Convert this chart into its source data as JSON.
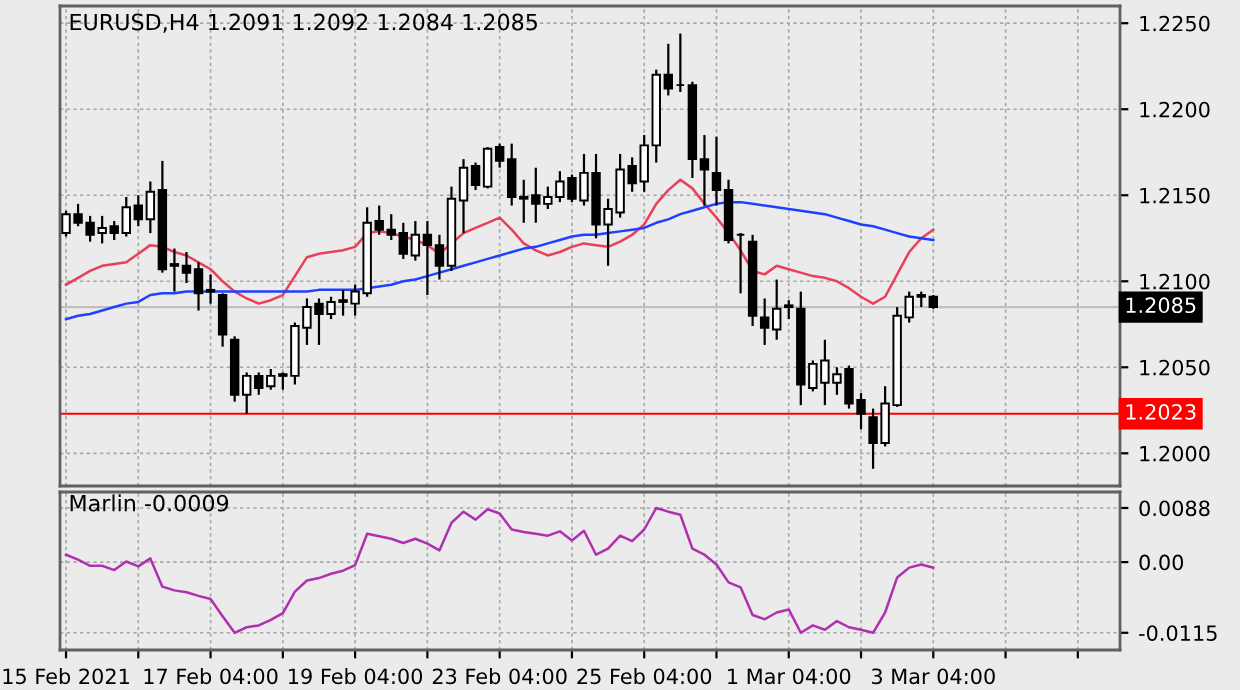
{
  "chart_data": [
    {
      "type": "candlestick",
      "title": "EURUSD,H4 1.2091 1.2092 1.2084 1.2085",
      "categories": [
        null,
        null,
        null,
        null,
        null,
        null,
        null,
        null,
        null,
        null,
        null,
        null,
        null,
        null,
        null,
        null,
        null,
        null,
        null,
        null,
        null,
        null,
        null,
        null,
        null,
        null,
        null,
        null,
        null,
        null,
        null,
        null,
        null,
        null,
        null,
        null,
        null,
        null,
        null,
        null,
        null,
        null,
        null,
        null,
        null,
        null,
        null,
        null,
        null,
        null,
        null,
        null,
        null,
        null,
        null,
        null,
        null,
        null,
        null,
        null,
        null,
        null,
        null,
        null,
        null,
        null,
        null,
        null,
        null,
        null,
        null,
        null,
        null,
        null,
        null,
        null,
        null,
        null,
        null,
        null,
        null,
        null,
        null,
        null,
        null,
        null,
        null,
        null
      ],
      "ohlc": [
        [
          1.2128,
          1.2141,
          1.2126,
          1.2139
        ],
        [
          1.2139,
          1.2145,
          1.2132,
          1.2134
        ],
        [
          1.2134,
          1.2138,
          1.2123,
          1.2127
        ],
        [
          1.2128,
          1.2138,
          1.2122,
          1.2131
        ],
        [
          1.2132,
          1.2135,
          1.2124,
          1.2128
        ],
        [
          1.2128,
          1.2149,
          1.2126,
          1.2143
        ],
        [
          1.2144,
          1.215,
          1.2132,
          1.2136
        ],
        [
          1.2136,
          1.2158,
          1.2128,
          1.2152
        ],
        [
          1.2153,
          1.217,
          1.2105,
          1.2107
        ],
        [
          1.211,
          1.2119,
          1.2094,
          1.2109
        ],
        [
          1.2109,
          1.2117,
          1.2099,
          1.2105
        ],
        [
          1.2107,
          1.2111,
          1.2083,
          1.2093
        ],
        [
          1.2095,
          1.2104,
          1.2087,
          1.2094
        ],
        [
          1.2092,
          1.2093,
          1.2062,
          1.2069
        ],
        [
          1.2066,
          1.2068,
          1.203,
          1.2034
        ],
        [
          1.2034,
          1.2047,
          1.2023,
          1.2045
        ],
        [
          1.2045,
          1.2047,
          1.2034,
          1.2038
        ],
        [
          1.2039,
          1.2049,
          1.2037,
          1.2045
        ],
        [
          1.2045,
          1.2047,
          1.2037,
          1.2046
        ],
        [
          1.2045,
          1.2076,
          1.204,
          1.2074
        ],
        [
          1.2073,
          1.209,
          1.2063,
          1.2085
        ],
        [
          1.2087,
          1.209,
          1.2063,
          1.2081
        ],
        [
          1.2081,
          1.2091,
          1.2078,
          1.2088
        ],
        [
          1.2088,
          1.2095,
          1.208,
          1.2089
        ],
        [
          1.2087,
          1.2098,
          1.208,
          1.2094
        ],
        [
          1.2093,
          1.2143,
          1.2091,
          1.2134
        ],
        [
          1.2135,
          1.2144,
          1.2127,
          1.213
        ],
        [
          1.213,
          1.2139,
          1.2124,
          1.2127
        ],
        [
          1.2128,
          1.2134,
          1.2113,
          1.2116
        ],
        [
          1.2115,
          1.2135,
          1.2112,
          1.2127
        ],
        [
          1.2127,
          1.2135,
          1.2092,
          1.2121
        ],
        [
          1.2121,
          1.2127,
          1.2101,
          1.2109
        ],
        [
          1.2109,
          1.2155,
          1.2106,
          1.2148
        ],
        [
          1.2147,
          1.2171,
          1.2128,
          1.2166
        ],
        [
          1.2167,
          1.2169,
          1.2153,
          1.2156
        ],
        [
          1.2155,
          1.2178,
          1.2154,
          1.2177
        ],
        [
          1.2178,
          1.218,
          1.2166,
          1.217
        ],
        [
          1.2171,
          1.218,
          1.2144,
          1.2149
        ],
        [
          1.2149,
          1.2159,
          1.2134,
          1.2148
        ],
        [
          1.215,
          1.2166,
          1.2134,
          1.2145
        ],
        [
          1.2145,
          1.2155,
          1.2142,
          1.2149
        ],
        [
          1.2149,
          1.2164,
          1.2146,
          1.2158
        ],
        [
          1.216,
          1.2162,
          1.2146,
          1.2148
        ],
        [
          1.2147,
          1.2174,
          1.2144,
          1.2163
        ],
        [
          1.2163,
          1.2174,
          1.2125,
          1.2133
        ],
        [
          1.2133,
          1.2148,
          1.2109,
          1.2142
        ],
        [
          1.214,
          1.2174,
          1.2137,
          1.2165
        ],
        [
          1.2167,
          1.2172,
          1.2152,
          1.2157
        ],
        [
          1.2158,
          1.2185,
          1.2152,
          1.2179
        ],
        [
          1.2179,
          1.2223,
          1.2169,
          1.222
        ],
        [
          1.222,
          1.2238,
          1.2208,
          1.2212
        ],
        [
          1.2214,
          1.2244,
          1.221,
          1.2214
        ],
        [
          1.2214,
          1.2216,
          1.216,
          1.2171
        ],
        [
          1.2171,
          1.2185,
          1.2144,
          1.2165
        ],
        [
          1.2163,
          1.2184,
          1.2144,
          1.2153
        ],
        [
          1.2153,
          1.2159,
          1.2122,
          1.2124
        ],
        [
          1.2127,
          1.2128,
          1.2093,
          1.2127
        ],
        [
          1.2123,
          1.2127,
          1.2074,
          1.208
        ],
        [
          1.2079,
          1.209,
          1.2063,
          1.2073
        ],
        [
          1.2072,
          1.2101,
          1.2066,
          1.2084
        ],
        [
          1.2085,
          1.2089,
          1.2078,
          1.2086
        ],
        [
          1.2084,
          1.2094,
          1.2028,
          1.204
        ],
        [
          1.2038,
          1.2054,
          1.2036,
          1.2052
        ],
        [
          1.2041,
          1.2066,
          1.2028,
          1.2054
        ],
        [
          1.2041,
          1.205,
          1.2034,
          1.2046
        ],
        [
          1.2049,
          1.2051,
          1.2026,
          1.2029
        ],
        [
          1.2031,
          1.2035,
          1.2014,
          1.2023
        ],
        [
          1.2021,
          1.2026,
          1.1991,
          1.2006
        ],
        [
          1.2006,
          1.2039,
          1.2004,
          1.2029
        ],
        [
          1.2028,
          1.2085,
          1.2027,
          1.208
        ],
        [
          1.2079,
          1.2094,
          1.2076,
          1.2091
        ],
        [
          1.2091,
          1.2094,
          1.2085,
          1.2092
        ],
        [
          1.2091,
          1.2092,
          1.2084,
          1.2085
        ],
        null,
        null,
        null,
        null,
        null,
        null,
        null,
        null,
        null,
        null,
        null,
        null,
        null,
        null,
        null
      ],
      "series": [
        {
          "type": "line",
          "color": "#e8405a",
          "values": [
            1.2098,
            1.2102,
            1.2106,
            1.2109,
            1.211,
            1.2111,
            1.2116,
            1.2121,
            1.212,
            1.2117,
            1.2115,
            1.2111,
            1.2107,
            1.21,
            1.2094,
            1.209,
            1.2087,
            1.2089,
            1.2092,
            1.2103,
            1.2114,
            1.2116,
            1.2117,
            1.2118,
            1.212,
            1.2128,
            1.2129,
            1.2128,
            1.2126,
            1.2124,
            1.2121,
            1.2116,
            1.2122,
            1.2128,
            1.2131,
            1.2134,
            1.2137,
            1.213,
            1.2122,
            1.2118,
            1.2115,
            1.2117,
            1.212,
            1.2122,
            1.2121,
            1.212,
            1.2123,
            1.2127,
            1.2133,
            1.2145,
            1.2153,
            1.2159,
            1.2154,
            1.2145,
            1.2137,
            1.2128,
            1.2118,
            1.2106,
            1.2104,
            1.2109,
            1.2107,
            1.2105,
            1.2103,
            1.2102,
            1.21,
            1.2096,
            1.2091,
            1.2087,
            1.2091,
            1.2104,
            1.2117,
            1.2125,
            1.213,
            null,
            null,
            null,
            null,
            null,
            null,
            null,
            null,
            null,
            null,
            null,
            null,
            null,
            null,
            null
          ]
        },
        {
          "type": "line",
          "color": "#2040ff",
          "values": [
            1.2078,
            1.208,
            1.2081,
            1.2083,
            1.2085,
            1.2087,
            1.2088,
            1.2092,
            1.2093,
            1.2093,
            1.2094,
            1.2094,
            1.2094,
            1.2094,
            1.2094,
            1.2094,
            1.2094,
            1.2094,
            1.2094,
            1.2094,
            1.2094,
            1.2095,
            1.2095,
            1.2095,
            1.2095,
            1.2096,
            1.2097,
            1.2098,
            1.21,
            1.2101,
            1.2103,
            1.2105,
            1.2107,
            1.2109,
            1.2111,
            1.2113,
            1.2115,
            1.2117,
            1.2119,
            1.212,
            1.2122,
            1.2124,
            1.2126,
            1.2127,
            1.2127,
            1.2128,
            1.2129,
            1.213,
            1.2131,
            1.2134,
            1.2136,
            1.2139,
            1.2141,
            1.2143,
            1.2145,
            1.2146,
            1.2146,
            1.2145,
            1.2144,
            1.2143,
            1.2142,
            1.2141,
            1.214,
            1.2139,
            1.2137,
            1.2135,
            1.2133,
            1.2132,
            1.213,
            1.2128,
            1.2126,
            1.2125,
            1.2124,
            null,
            null,
            null,
            null,
            null,
            null,
            null,
            null,
            null,
            null,
            null,
            null,
            null,
            null,
            null
          ]
        }
      ],
      "ylim": [
        1.1981,
        1.226
      ],
      "yticks": [
        {
          "value": 1.2,
          "label": "1.2000"
        },
        {
          "value": 1.205,
          "label": "1.2050"
        },
        {
          "value": 1.21,
          "label": "1.2100"
        },
        {
          "value": 1.215,
          "label": "1.2150"
        },
        {
          "value": 1.22,
          "label": "1.2200"
        },
        {
          "value": 1.225,
          "label": "1.2250"
        }
      ],
      "ref_lines": [
        {
          "axis": "y",
          "value": 1.2023,
          "label": "1.2023",
          "color": "#ff0000"
        },
        {
          "axis": "y",
          "value": 1.2085,
          "label": "1.2085",
          "color": "#c0c0c0"
        }
      ],
      "grid": true,
      "tick_labels": "y"
    },
    {
      "type": "line",
      "title": "Marlin -0.0009",
      "categories": [
        "15 Feb 2021",
        null,
        null,
        null,
        null,
        null,
        null,
        null,
        null,
        null,
        null,
        null,
        "17 Feb 04:00",
        null,
        null,
        null,
        null,
        null,
        null,
        null,
        null,
        null,
        null,
        null,
        "19 Feb 04:00",
        null,
        null,
        null,
        null,
        null,
        null,
        null,
        null,
        null,
        null,
        null,
        "23 Feb 04:00",
        null,
        null,
        null,
        null,
        null,
        null,
        null,
        null,
        null,
        null,
        null,
        "25 Feb 04:00",
        null,
        null,
        null,
        null,
        null,
        null,
        null,
        null,
        null,
        null,
        null,
        "1 Mar 04:00",
        null,
        null,
        null,
        null,
        null,
        null,
        null,
        null,
        null,
        null,
        null,
        "3 Mar 04:00",
        null,
        null,
        null,
        null,
        null,
        null,
        null,
        null,
        null,
        null,
        null,
        null,
        null,
        null,
        null
      ],
      "series": [
        {
          "color": "#b030b0",
          "values": [
            0.0012,
            0.0004,
            -0.0006,
            -0.0006,
            -0.0013,
            0.0001,
            -0.0007,
            0.0006,
            -0.004,
            -0.0046,
            -0.0049,
            -0.0055,
            -0.006,
            -0.0088,
            -0.0115,
            -0.0106,
            -0.0103,
            -0.0094,
            -0.0083,
            -0.0048,
            -0.003,
            -0.0026,
            -0.0019,
            -0.0014,
            -0.0005,
            0.0046,
            0.0042,
            0.0038,
            0.0031,
            0.0038,
            0.003,
            0.0019,
            0.0064,
            0.0082,
            0.0069,
            0.0086,
            0.0079,
            0.0053,
            0.0049,
            0.0046,
            0.0043,
            0.005,
            0.0035,
            0.0051,
            0.0012,
            0.0022,
            0.0043,
            0.0034,
            0.0053,
            0.0088,
            0.0082,
            0.0077,
            0.0022,
            0.0012,
            -0.0004,
            -0.0033,
            -0.0041,
            -0.0086,
            -0.0093,
            -0.0082,
            -0.0077,
            -0.0115,
            -0.0103,
            -0.011,
            -0.0096,
            -0.0106,
            -0.011,
            -0.0115,
            -0.0082,
            -0.0025,
            -0.0009,
            -0.0004,
            -0.0009,
            null,
            null,
            null,
            null,
            null,
            null,
            null,
            null,
            null,
            null,
            null,
            null,
            null,
            null,
            null
          ]
        }
      ],
      "ylim": [
        -0.0143,
        0.0114
      ],
      "yticks": [
        -0.0115,
        {
          "value": 0,
          "label": "0.00"
        },
        0.0088
      ],
      "grid": true
    }
  ]
}
